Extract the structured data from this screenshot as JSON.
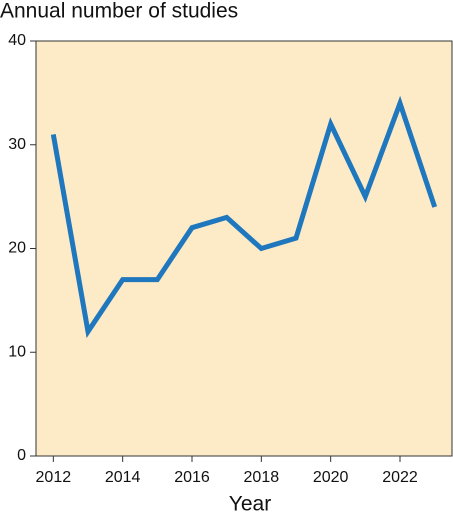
{
  "chart_data": {
    "type": "line",
    "title": "Annual number of studies",
    "x_label": "Year",
    "x": [
      2012,
      2013,
      2014,
      2015,
      2016,
      2017,
      2018,
      2019,
      2020,
      2021,
      2022,
      2023
    ],
    "values": [
      31,
      12,
      17,
      17,
      22,
      23,
      20,
      21,
      32,
      25,
      34,
      24
    ],
    "color": "#1f77bd",
    "background": "#fdebc8",
    "xlim": [
      2011.5,
      2023.5
    ],
    "xticks": [
      2012,
      2014,
      2016,
      2018,
      2020,
      2022
    ],
    "ylim": [
      0,
      40
    ],
    "yticks": [
      0,
      10,
      20,
      30,
      40
    ],
    "grid": false
  }
}
